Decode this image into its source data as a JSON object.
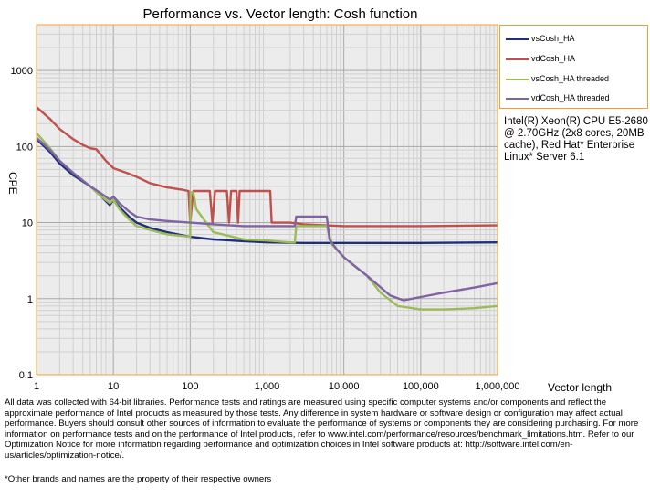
{
  "chart_data": {
    "type": "line",
    "title": "Performance vs. Vector length: Cosh function",
    "xlabel": "Vector length",
    "ylabel": "CPE",
    "xscale": "log",
    "yscale": "log",
    "xlim": [
      1,
      1000000
    ],
    "ylim": [
      0.1,
      4000
    ],
    "x_ticks": [
      "1",
      "10",
      "100",
      "1,000",
      "10,000",
      "100,000",
      "1,000,000"
    ],
    "y_ticks": [
      "0.1",
      "1",
      "10",
      "100",
      "1000"
    ],
    "grid": true,
    "legend_position": "right",
    "series": [
      {
        "name": "vsCosh_HA",
        "color": "#1f2f7a",
        "points": [
          [
            1,
            125
          ],
          [
            1.5,
            85
          ],
          [
            2,
            60
          ],
          [
            3,
            42
          ],
          [
            5,
            30
          ],
          [
            7,
            22
          ],
          [
            9,
            17
          ],
          [
            10,
            20
          ],
          [
            12,
            16
          ],
          [
            16,
            12
          ],
          [
            20,
            10
          ],
          [
            30,
            8.5
          ],
          [
            50,
            7.5
          ],
          [
            80,
            6.8
          ],
          [
            100,
            6.5
          ],
          [
            200,
            6
          ],
          [
            500,
            5.7
          ],
          [
            1000,
            5.5
          ],
          [
            3000,
            5.4
          ],
          [
            10000,
            5.4
          ],
          [
            100000,
            5.4
          ],
          [
            1000000,
            5.5
          ]
        ]
      },
      {
        "name": "vdCosh_HA",
        "color": "#c0504d",
        "points": [
          [
            1,
            330
          ],
          [
            1.5,
            230
          ],
          [
            2,
            170
          ],
          [
            3,
            125
          ],
          [
            4,
            105
          ],
          [
            5,
            95
          ],
          [
            6,
            92
          ],
          [
            8,
            65
          ],
          [
            10,
            52
          ],
          [
            15,
            45
          ],
          [
            20,
            40
          ],
          [
            30,
            33
          ],
          [
            50,
            29
          ],
          [
            80,
            27
          ],
          [
            95,
            26
          ],
          [
            100,
            10
          ],
          [
            110,
            26
          ],
          [
            180,
            26
          ],
          [
            195,
            10
          ],
          [
            210,
            26
          ],
          [
            300,
            26
          ],
          [
            320,
            10
          ],
          [
            340,
            26
          ],
          [
            400,
            26
          ],
          [
            420,
            10
          ],
          [
            440,
            26
          ],
          [
            600,
            26
          ],
          [
            1000,
            26
          ],
          [
            1100,
            26
          ],
          [
            1150,
            10
          ],
          [
            2000,
            10
          ],
          [
            3000,
            9.5
          ],
          [
            10000,
            9
          ],
          [
            100000,
            9
          ],
          [
            1000000,
            9.2
          ]
        ]
      },
      {
        "name": "vsCosh_HA threaded",
        "color": "#9bbb59",
        "points": [
          [
            1,
            150
          ],
          [
            1.5,
            95
          ],
          [
            2,
            65
          ],
          [
            3,
            45
          ],
          [
            5,
            30
          ],
          [
            7,
            22
          ],
          [
            9,
            18
          ],
          [
            10,
            20
          ],
          [
            12,
            15
          ],
          [
            16,
            11
          ],
          [
            20,
            9
          ],
          [
            30,
            8
          ],
          [
            50,
            7
          ],
          [
            100,
            6.5
          ],
          [
            101,
            25
          ],
          [
            110,
            25
          ],
          [
            120,
            15
          ],
          [
            200,
            7.5
          ],
          [
            500,
            6
          ],
          [
            1000,
            5.8
          ],
          [
            2000,
            5.5
          ],
          [
            2300,
            5.5
          ],
          [
            2400,
            9
          ],
          [
            5000,
            9
          ],
          [
            6000,
            9
          ],
          [
            7000,
            5.2
          ],
          [
            8000,
            4.5
          ],
          [
            10000,
            3.5
          ],
          [
            15000,
            2.5
          ],
          [
            20000,
            2
          ],
          [
            30000,
            1.2
          ],
          [
            50000,
            0.8
          ],
          [
            100000,
            0.72
          ],
          [
            200000,
            0.72
          ],
          [
            500000,
            0.75
          ],
          [
            1000000,
            0.8
          ]
        ]
      },
      {
        "name": "vdCosh_HA threaded",
        "color": "#8064a2",
        "points": [
          [
            1,
            130
          ],
          [
            1.5,
            90
          ],
          [
            2,
            65
          ],
          [
            3,
            45
          ],
          [
            5,
            30
          ],
          [
            7,
            24
          ],
          [
            9,
            20
          ],
          [
            10,
            22
          ],
          [
            12,
            18
          ],
          [
            16,
            14
          ],
          [
            20,
            12
          ],
          [
            30,
            11
          ],
          [
            50,
            10.5
          ],
          [
            100,
            10
          ],
          [
            200,
            9.5
          ],
          [
            500,
            9
          ],
          [
            1000,
            9
          ],
          [
            2000,
            9
          ],
          [
            2300,
            9
          ],
          [
            2400,
            12
          ],
          [
            4000,
            12
          ],
          [
            6000,
            12
          ],
          [
            6500,
            6
          ],
          [
            8000,
            4.5
          ],
          [
            10000,
            3.5
          ],
          [
            20000,
            2
          ],
          [
            40000,
            1.1
          ],
          [
            60000,
            0.95
          ],
          [
            100000,
            1.05
          ],
          [
            200000,
            1.2
          ],
          [
            500000,
            1.4
          ],
          [
            1000000,
            1.6
          ]
        ]
      }
    ]
  },
  "side_note": "Intel(R) Xeon(R) CPU E5-2680 @ 2.70GHz (2x8 cores, 20MB cache), Red Hat* Enterprise Linux* Server 6.1",
  "disclaimer": "All data was collected with 64-bit libraries. Performance tests and ratings are measured using specific computer systems and/or components and reflect the approximate performance of Intel products as measured by those tests. Any difference in system hardware or software design or configuration may affect actual performance. Buyers should consult other sources of information to evaluate the performance of systems or components they are considering purchasing. For more information on performance tests and on the performance of Intel products, refer to www.intel.com/performance/resources/benchmark_limitations.htm. Refer to our Optimization Notice for more information regarding performance and optimization choices in Intel software products at: http://software.intel.com/en-us/articles/optimization-notice/.",
  "footnote": "*Other brands and names are the property of their respective owners"
}
